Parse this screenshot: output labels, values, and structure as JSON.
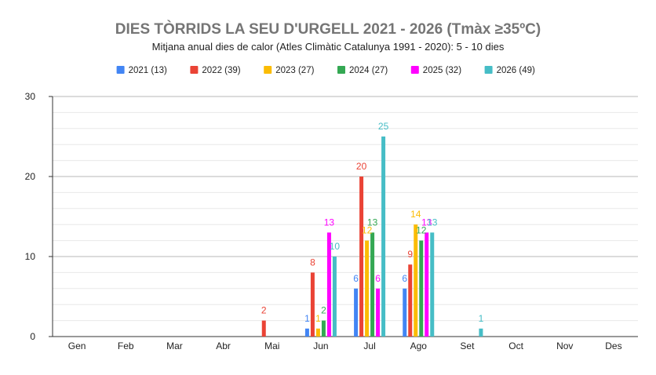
{
  "chart_data": {
    "type": "bar",
    "title": "DIES TÒRRIDS LA SEU D'URGELL 2021 - 2026 (Tmàx ≥35ºC)",
    "subtitle": "Mitjana anual dies de calor (Atles Climàtic Catalunya 1991 - 2020): 5 - 10 dies",
    "xlabel": "",
    "ylabel": "",
    "ylim": [
      0,
      30
    ],
    "yticks": [
      "0",
      "10",
      "20",
      "30"
    ],
    "grid": true,
    "legend_position": "top",
    "categories": [
      "Gen",
      "Feb",
      "Mar",
      "Abr",
      "Mai",
      "Jun",
      "Jul",
      "Ago",
      "Set",
      "Oct",
      "Nov",
      "Des"
    ],
    "series": [
      {
        "name": "2021 (13)",
        "color": "#4285f4",
        "values": [
          0,
          0,
          0,
          0,
          0,
          1,
          6,
          6,
          0,
          0,
          0,
          0
        ]
      },
      {
        "name": "2022 (39)",
        "color": "#ea4335",
        "values": [
          0,
          0,
          0,
          0,
          2,
          8,
          20,
          9,
          0,
          0,
          0,
          0
        ]
      },
      {
        "name": "2023 (27)",
        "color": "#fbbc04",
        "values": [
          0,
          0,
          0,
          0,
          0,
          1,
          12,
          14,
          0,
          0,
          0,
          0
        ]
      },
      {
        "name": "2024 (27)",
        "color": "#34a853",
        "values": [
          0,
          0,
          0,
          0,
          0,
          2,
          13,
          12,
          0,
          0,
          0,
          0
        ]
      },
      {
        "name": "2025 (32)",
        "color": "#ff00ff",
        "values": [
          0,
          0,
          0,
          0,
          0,
          13,
          6,
          13,
          0,
          0,
          0,
          0
        ]
      },
      {
        "name": "2026 (49)",
        "color": "#46bdc6",
        "values": [
          0,
          0,
          0,
          0,
          0,
          10,
          25,
          13,
          1,
          0,
          0,
          0
        ]
      }
    ]
  }
}
